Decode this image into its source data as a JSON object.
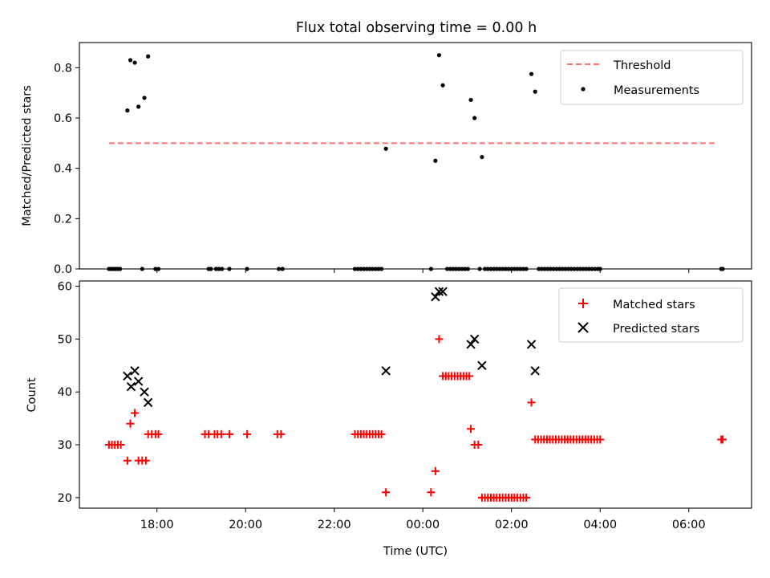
{
  "chart_data": [
    {
      "type": "scatter",
      "title": "Flux total observing time = 0.00 h",
      "xlabel": "",
      "ylabel": "Matched/Predicted stars",
      "ylim": [
        0,
        0.9
      ],
      "yticks": [
        "0.0",
        "0.2",
        "0.4",
        "0.6",
        "0.8"
      ],
      "ytick_values": [
        0,
        0.2,
        0.4,
        0.6,
        0.8
      ],
      "legend": {
        "placement": "top-right",
        "entries": [
          "Threshold",
          "Measurements"
        ]
      },
      "threshold": {
        "name": "Threshold",
        "value": 0.5,
        "x": [
          "16:55",
          "06:35"
        ],
        "color": "#ff7070"
      },
      "series": [
        {
          "name": "Measurements",
          "color": "#000000",
          "points": [
            [
              "16:55",
              0
            ],
            [
              "16:58",
              0
            ],
            [
              "17:01",
              0
            ],
            [
              "17:04",
              0
            ],
            [
              "17:07",
              0
            ],
            [
              "17:10",
              0
            ],
            [
              "17:20",
              0.63
            ],
            [
              "17:24",
              0.83
            ],
            [
              "17:30",
              0.82
            ],
            [
              "17:35",
              0.645
            ],
            [
              "17:43",
              0.68
            ],
            [
              "17:48",
              0.845
            ],
            [
              "17:40",
              0
            ],
            [
              "17:58",
              0
            ],
            [
              "18:02",
              0
            ],
            [
              "19:10",
              0
            ],
            [
              "19:13",
              0
            ],
            [
              "19:20",
              0
            ],
            [
              "19:24",
              0
            ],
            [
              "19:28",
              0
            ],
            [
              "19:38",
              0
            ],
            [
              "20:02",
              0
            ],
            [
              "20:45",
              0
            ],
            [
              "20:50",
              0
            ],
            [
              "22:28",
              0
            ],
            [
              "22:32",
              0
            ],
            [
              "22:36",
              0
            ],
            [
              "22:40",
              0
            ],
            [
              "22:44",
              0
            ],
            [
              "22:48",
              0
            ],
            [
              "22:52",
              0
            ],
            [
              "22:56",
              0
            ],
            [
              "23:00",
              0
            ],
            [
              "23:04",
              0
            ],
            [
              "23:10",
              0.478
            ],
            [
              "00:11",
              0
            ],
            [
              "00:17",
              0.43
            ],
            [
              "00:22",
              0.85
            ],
            [
              "00:27",
              0.73
            ],
            [
              "00:33",
              0
            ],
            [
              "00:37",
              0
            ],
            [
              "00:41",
              0
            ],
            [
              "00:45",
              0
            ],
            [
              "00:49",
              0
            ],
            [
              "00:53",
              0
            ],
            [
              "00:57",
              0
            ],
            [
              "01:01",
              0
            ],
            [
              "01:05",
              0.672
            ],
            [
              "01:10",
              0.6
            ],
            [
              "01:20",
              0.445
            ],
            [
              "01:17",
              0
            ],
            [
              "01:24",
              0
            ],
            [
              "01:28",
              0
            ],
            [
              "01:32",
              0
            ],
            [
              "01:36",
              0
            ],
            [
              "01:40",
              0
            ],
            [
              "01:44",
              0
            ],
            [
              "01:48",
              0
            ],
            [
              "01:52",
              0
            ],
            [
              "01:56",
              0
            ],
            [
              "02:00",
              0
            ],
            [
              "02:04",
              0
            ],
            [
              "02:08",
              0
            ],
            [
              "02:12",
              0
            ],
            [
              "02:16",
              0
            ],
            [
              "02:20",
              0
            ],
            [
              "02:27",
              0.775
            ],
            [
              "02:32",
              0.705
            ],
            [
              "02:37",
              0
            ],
            [
              "02:41",
              0
            ],
            [
              "02:45",
              0
            ],
            [
              "02:49",
              0
            ],
            [
              "02:53",
              0
            ],
            [
              "02:57",
              0
            ],
            [
              "03:01",
              0
            ],
            [
              "03:05",
              0
            ],
            [
              "03:09",
              0
            ],
            [
              "03:13",
              0
            ],
            [
              "03:17",
              0
            ],
            [
              "03:21",
              0
            ],
            [
              "03:25",
              0
            ],
            [
              "03:29",
              0
            ],
            [
              "03:33",
              0
            ],
            [
              "03:37",
              0
            ],
            [
              "03:41",
              0
            ],
            [
              "03:45",
              0
            ],
            [
              "03:49",
              0
            ],
            [
              "03:53",
              0
            ],
            [
              "03:57",
              0
            ],
            [
              "04:00",
              0
            ],
            [
              "06:44",
              0
            ],
            [
              "06:46",
              0
            ]
          ]
        }
      ]
    },
    {
      "type": "scatter",
      "title": "",
      "xlabel": "Time (UTC)",
      "ylabel": "Count",
      "ylim": [
        18,
        61
      ],
      "yticks": [
        "20",
        "30",
        "40",
        "50",
        "60"
      ],
      "ytick_values": [
        20,
        30,
        40,
        50,
        60
      ],
      "xlim": [
        "16:15",
        "07:25"
      ],
      "xticks": [
        "18:00",
        "20:00",
        "22:00",
        "00:00",
        "02:00",
        "04:00",
        "06:00"
      ],
      "legend": {
        "placement": "top-right",
        "entries": [
          "Matched stars",
          "Predicted stars"
        ]
      },
      "series": [
        {
          "name": "Matched stars",
          "color": "#ff0000",
          "marker": "plus",
          "points": [
            [
              "16:55",
              30
            ],
            [
              "16:59",
              30
            ],
            [
              "17:03",
              30
            ],
            [
              "17:07",
              30
            ],
            [
              "17:11",
              30
            ],
            [
              "17:20",
              27
            ],
            [
              "17:24",
              34
            ],
            [
              "17:30",
              36
            ],
            [
              "17:35",
              27
            ],
            [
              "17:40",
              27
            ],
            [
              "17:45",
              27
            ],
            [
              "17:48",
              32
            ],
            [
              "17:53",
              32
            ],
            [
              "17:58",
              32
            ],
            [
              "18:02",
              32
            ],
            [
              "19:05",
              32
            ],
            [
              "19:10",
              32
            ],
            [
              "19:18",
              32
            ],
            [
              "19:22",
              32
            ],
            [
              "19:27",
              32
            ],
            [
              "19:38",
              32
            ],
            [
              "20:02",
              32
            ],
            [
              "20:43",
              32
            ],
            [
              "20:48",
              32
            ],
            [
              "22:28",
              32
            ],
            [
              "22:32",
              32
            ],
            [
              "22:36",
              32
            ],
            [
              "22:40",
              32
            ],
            [
              "22:44",
              32
            ],
            [
              "22:48",
              32
            ],
            [
              "22:52",
              32
            ],
            [
              "22:56",
              32
            ],
            [
              "23:00",
              32
            ],
            [
              "23:04",
              32
            ],
            [
              "23:10",
              21
            ],
            [
              "00:11",
              21
            ],
            [
              "00:17",
              25
            ],
            [
              "00:22",
              50
            ],
            [
              "00:27",
              43
            ],
            [
              "00:31",
              43
            ],
            [
              "00:35",
              43
            ],
            [
              "00:39",
              43
            ],
            [
              "00:43",
              43
            ],
            [
              "00:47",
              43
            ],
            [
              "00:51",
              43
            ],
            [
              "00:55",
              43
            ],
            [
              "00:59",
              43
            ],
            [
              "01:03",
              43
            ],
            [
              "01:05",
              33
            ],
            [
              "01:10",
              30
            ],
            [
              "01:15",
              30
            ],
            [
              "01:20",
              20
            ],
            [
              "01:24",
              20
            ],
            [
              "01:28",
              20
            ],
            [
              "01:32",
              20
            ],
            [
              "01:36",
              20
            ],
            [
              "01:40",
              20
            ],
            [
              "01:44",
              20
            ],
            [
              "01:48",
              20
            ],
            [
              "01:52",
              20
            ],
            [
              "01:56",
              20
            ],
            [
              "02:00",
              20
            ],
            [
              "02:04",
              20
            ],
            [
              "02:08",
              20
            ],
            [
              "02:12",
              20
            ],
            [
              "02:16",
              20
            ],
            [
              "02:20",
              20
            ],
            [
              "02:27",
              38
            ],
            [
              "02:32",
              31
            ],
            [
              "02:36",
              31
            ],
            [
              "02:40",
              31
            ],
            [
              "02:44",
              31
            ],
            [
              "02:48",
              31
            ],
            [
              "02:52",
              31
            ],
            [
              "02:56",
              31
            ],
            [
              "03:00",
              31
            ],
            [
              "03:04",
              31
            ],
            [
              "03:08",
              31
            ],
            [
              "03:12",
              31
            ],
            [
              "03:16",
              31
            ],
            [
              "03:20",
              31
            ],
            [
              "03:24",
              31
            ],
            [
              "03:28",
              31
            ],
            [
              "03:32",
              31
            ],
            [
              "03:36",
              31
            ],
            [
              "03:40",
              31
            ],
            [
              "03:44",
              31
            ],
            [
              "03:48",
              31
            ],
            [
              "03:52",
              31
            ],
            [
              "03:56",
              31
            ],
            [
              "04:00",
              31
            ],
            [
              "06:44",
              31
            ],
            [
              "06:46",
              31
            ]
          ]
        },
        {
          "name": "Predicted stars",
          "color": "#000000",
          "marker": "x",
          "points": [
            [
              "17:20",
              43
            ],
            [
              "17:25",
              41
            ],
            [
              "17:30",
              44
            ],
            [
              "17:35",
              42
            ],
            [
              "17:43",
              40
            ],
            [
              "17:48",
              38
            ],
            [
              "23:10",
              44
            ],
            [
              "00:17",
              58
            ],
            [
              "00:22",
              59
            ],
            [
              "00:27",
              59
            ],
            [
              "01:05",
              49
            ],
            [
              "01:10",
              50
            ],
            [
              "01:20",
              45
            ],
            [
              "02:27",
              49
            ],
            [
              "02:32",
              44
            ]
          ]
        }
      ]
    }
  ]
}
